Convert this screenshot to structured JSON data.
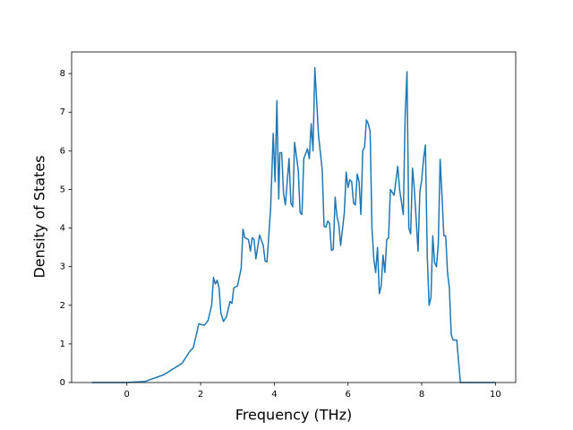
{
  "chart_data": {
    "type": "line",
    "xlabel": "Frequency (THz)",
    "ylabel": "Density of States",
    "xlim": [
      -1.5,
      10.55
    ],
    "ylim": [
      0,
      8.56
    ],
    "xticks": [
      0,
      2,
      4,
      6,
      8,
      10
    ],
    "yticks": [
      0,
      1,
      2,
      3,
      4,
      5,
      6,
      7,
      8
    ],
    "x": [
      -0.95,
      0,
      0.5,
      1.0,
      1.5,
      1.7,
      1.8,
      1.9,
      1.95,
      2.1,
      2.2,
      2.3,
      2.35,
      2.4,
      2.45,
      2.5,
      2.55,
      2.62,
      2.7,
      2.8,
      2.85,
      2.9,
      3.0,
      3.1,
      3.15,
      3.2,
      3.3,
      3.35,
      3.4,
      3.45,
      3.5,
      3.6,
      3.7,
      3.75,
      3.8,
      3.9,
      3.97,
      4.02,
      4.07,
      4.12,
      4.15,
      4.2,
      4.25,
      4.3,
      4.4,
      4.45,
      4.5,
      4.55,
      4.65,
      4.7,
      4.75,
      4.8,
      4.9,
      4.95,
      5.0,
      5.05,
      5.1,
      5.2,
      5.3,
      5.35,
      5.4,
      5.45,
      5.5,
      5.55,
      5.6,
      5.65,
      5.7,
      5.75,
      5.8,
      5.9,
      5.95,
      6.0,
      6.05,
      6.1,
      6.15,
      6.2,
      6.25,
      6.3,
      6.35,
      6.4,
      6.45,
      6.5,
      6.55,
      6.6,
      6.65,
      6.7,
      6.75,
      6.8,
      6.85,
      6.9,
      6.95,
      7.0,
      7.05,
      7.1,
      7.15,
      7.25,
      7.35,
      7.4,
      7.5,
      7.55,
      7.6,
      7.65,
      7.7,
      7.75,
      7.8,
      7.9,
      7.95,
      8.0,
      8.05,
      8.1,
      8.15,
      8.2,
      8.25,
      8.3,
      8.35,
      8.4,
      8.45,
      8.5,
      8.55,
      8.6,
      8.65,
      8.7,
      8.75,
      8.8,
      8.85,
      8.95,
      9.05,
      10.0
    ],
    "series": [
      {
        "color": "#1f77b4",
        "values": [
          0,
          0,
          0.03,
          0.2,
          0.5,
          0.8,
          0.9,
          1.3,
          1.52,
          1.48,
          1.6,
          2.0,
          2.72,
          2.55,
          2.65,
          2.45,
          1.8,
          1.58,
          1.7,
          2.1,
          2.05,
          2.45,
          2.5,
          2.95,
          3.97,
          3.75,
          3.7,
          3.4,
          3.75,
          3.7,
          3.2,
          3.82,
          3.55,
          3.15,
          3.12,
          4.5,
          6.45,
          5.2,
          7.3,
          4.75,
          5.95,
          5.95,
          4.9,
          4.6,
          5.8,
          4.65,
          4.55,
          6.22,
          5.5,
          4.4,
          4.35,
          5.8,
          6.05,
          5.8,
          6.7,
          6.0,
          8.15,
          6.4,
          5.5,
          4.05,
          4.02,
          4.18,
          4.12,
          3.42,
          3.45,
          4.8,
          4.3,
          4.1,
          3.55,
          4.4,
          5.45,
          5.05,
          5.25,
          5.2,
          4.65,
          4.6,
          5.4,
          5.2,
          4.35,
          6.0,
          6.1,
          6.8,
          6.7,
          6.5,
          4.0,
          3.2,
          2.85,
          3.5,
          2.3,
          2.5,
          3.3,
          2.85,
          3.7,
          3.75,
          5.0,
          4.85,
          5.6,
          5.0,
          4.35,
          6.9,
          8.05,
          4.0,
          3.85,
          5.55,
          5.0,
          3.4,
          4.95,
          5.25,
          5.8,
          6.15,
          3.3,
          2.0,
          2.2,
          3.8,
          3.1,
          3.0,
          3.6,
          5.78,
          4.85,
          3.8,
          3.8,
          2.85,
          2.45,
          1.25,
          1.1,
          1.1,
          0,
          0
        ]
      }
    ]
  }
}
